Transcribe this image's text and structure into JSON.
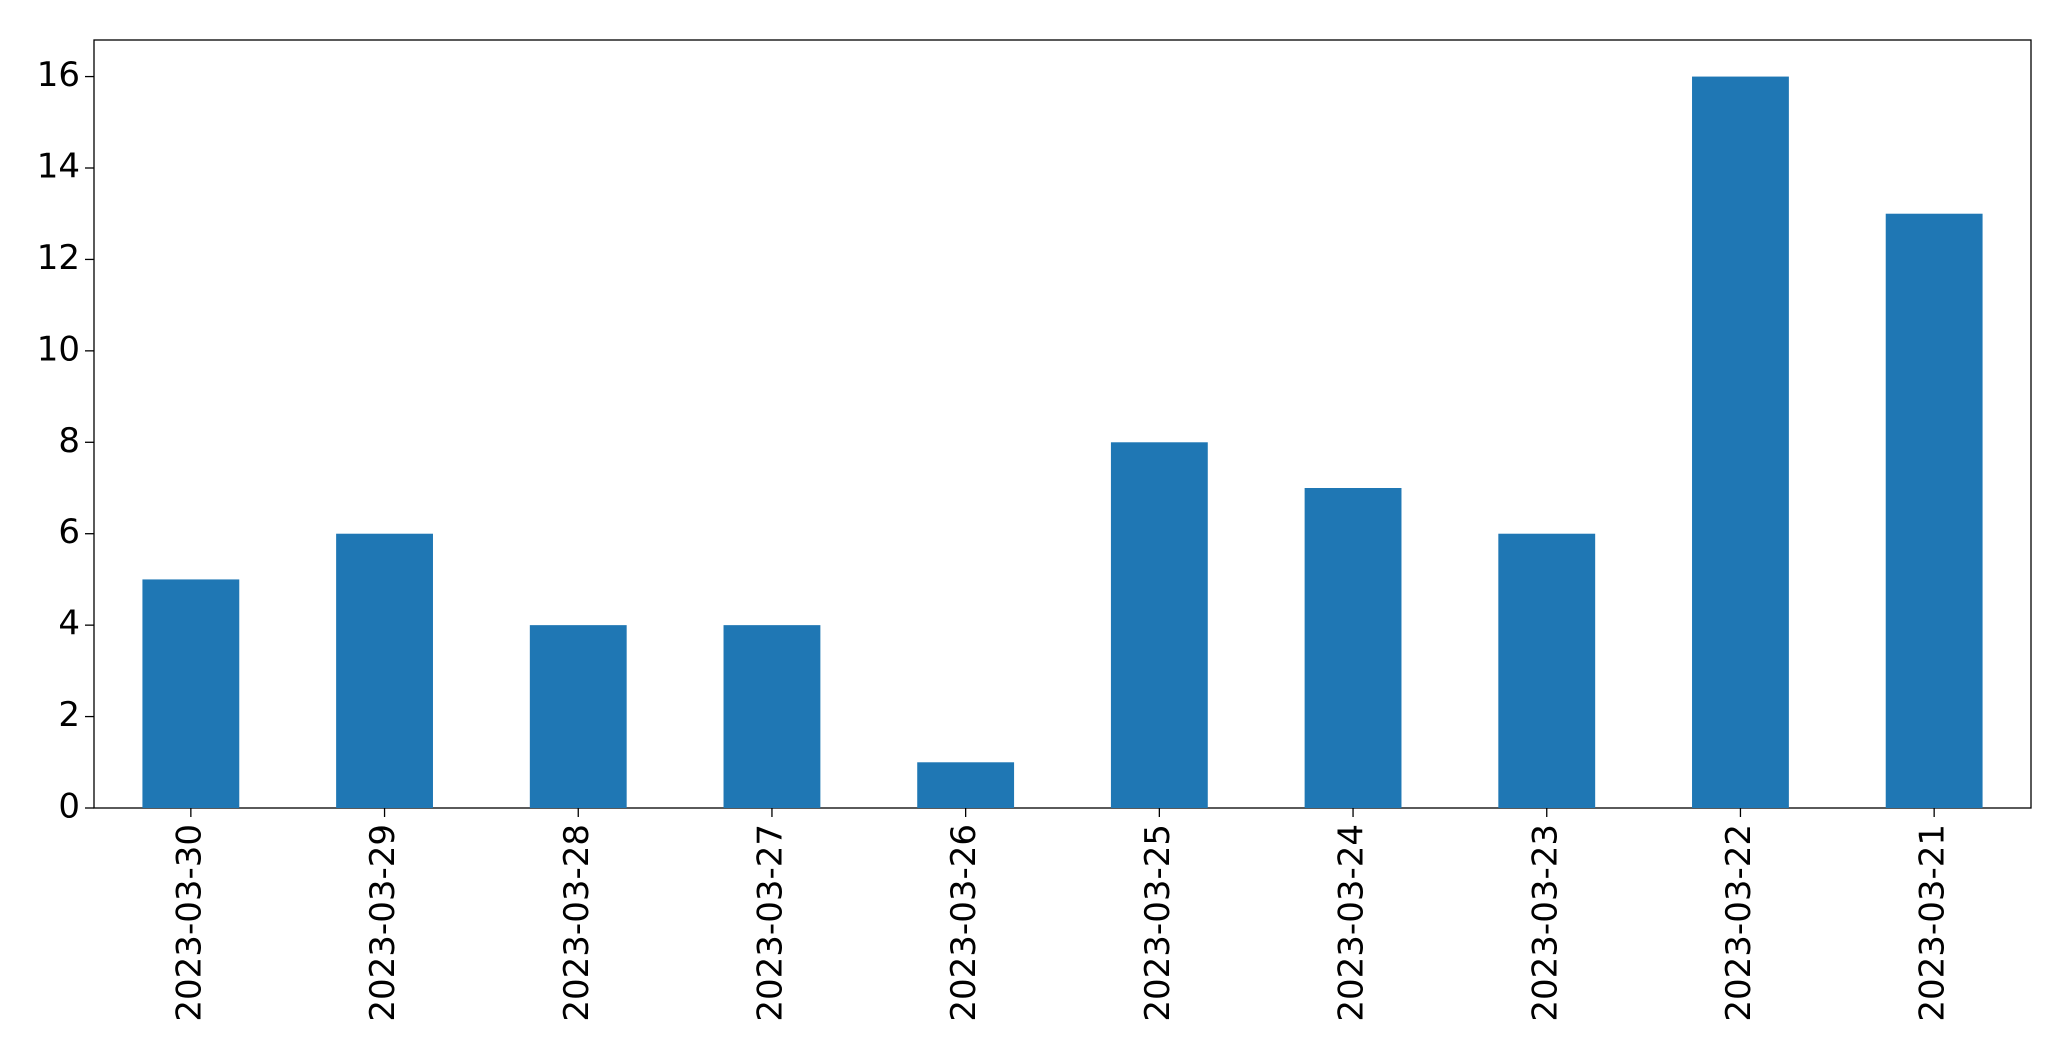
{
  "chart_data": {
    "type": "bar",
    "categories": [
      "2023-03-30",
      "2023-03-29",
      "2023-03-28",
      "2023-03-27",
      "2023-03-26",
      "2023-03-25",
      "2023-03-24",
      "2023-03-23",
      "2023-03-22",
      "2023-03-21"
    ],
    "values": [
      5,
      6,
      4,
      4,
      1,
      8,
      7,
      6,
      16,
      13
    ],
    "color": "#1f77b4",
    "ylim": [
      0,
      16.8
    ],
    "yticks": [
      0,
      2,
      4,
      6,
      8,
      10,
      12,
      14,
      16
    ],
    "grid": false
  }
}
